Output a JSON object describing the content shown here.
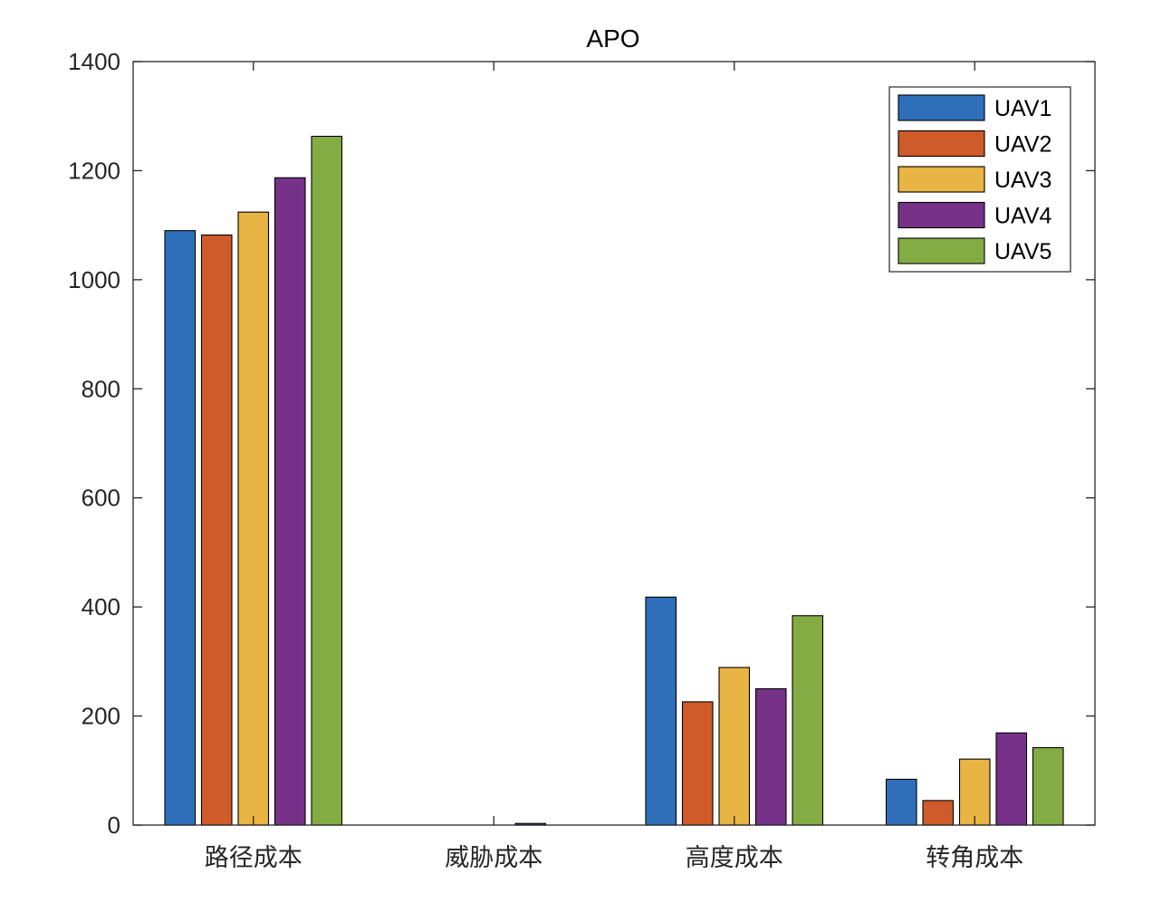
{
  "chart_data": {
    "type": "bar",
    "title": "APO",
    "xlabel": "",
    "ylabel": "",
    "categories": [
      "路径成本",
      "威胁成本",
      "高度成本",
      "转角成本"
    ],
    "ylim": [
      0,
      1400
    ],
    "yticks": [
      0,
      200,
      400,
      600,
      800,
      1000,
      1200,
      1400
    ],
    "grid": false,
    "legend_position": "top-right",
    "series": [
      {
        "name": "UAV1",
        "color": "#2f6fba",
        "values": [
          1090,
          0,
          418,
          84
        ]
      },
      {
        "name": "UAV2",
        "color": "#cf5a2a",
        "values": [
          1082,
          0,
          226,
          45
        ]
      },
      {
        "name": "UAV3",
        "color": "#e8b443",
        "values": [
          1124,
          0,
          289,
          121
        ]
      },
      {
        "name": "UAV4",
        "color": "#763289",
        "values": [
          1187,
          3,
          250,
          169
        ]
      },
      {
        "name": "UAV5",
        "color": "#84ac44",
        "values": [
          1263,
          0,
          384,
          142
        ]
      }
    ]
  }
}
